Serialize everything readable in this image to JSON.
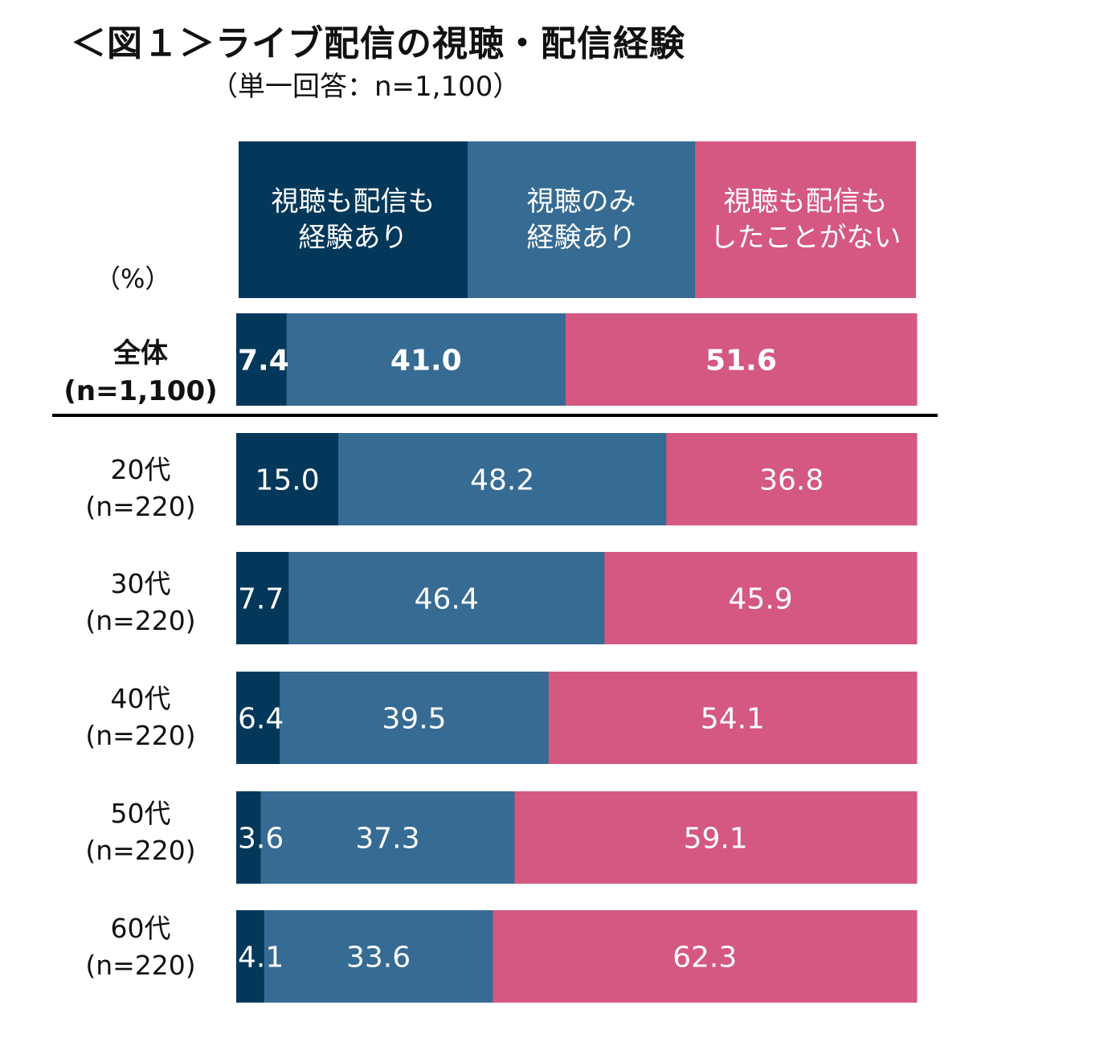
{
  "title": "＜図１＞ライブ配信の視聴・配信経験",
  "subtitle": "（単一回答：n=1,100）",
  "unit": "（%）",
  "colors": {
    "both": "#04385a",
    "view_only": "#366b94",
    "none": "#d45880"
  },
  "legend": [
    {
      "line1": "視聴も配信も",
      "line2": "経験あり"
    },
    {
      "line1": "視聴のみ",
      "line2": "経験あり"
    },
    {
      "line1": "視聴も配信も",
      "line2": "したことがない"
    }
  ],
  "rows": [
    {
      "label": "全体",
      "n": "(n=1,100)"
    },
    {
      "label": "20代",
      "n": "(n=220)"
    },
    {
      "label": "30代",
      "n": "(n=220)"
    },
    {
      "label": "40代",
      "n": "(n=220)"
    },
    {
      "label": "50代",
      "n": "(n=220)"
    },
    {
      "label": "60代",
      "n": "(n=220)"
    }
  ],
  "chart_data": {
    "type": "bar",
    "orientation": "horizontal",
    "stacked": true,
    "unit": "%",
    "title": "＜図１＞ライブ配信の視聴・配信経験",
    "categories": [
      "全体 (n=1,100)",
      "20代 (n=220)",
      "30代 (n=220)",
      "40代 (n=220)",
      "50代 (n=220)",
      "60代 (n=220)"
    ],
    "series": [
      {
        "name": "視聴も配信も経験あり",
        "values": [
          7.4,
          15.0,
          7.7,
          6.4,
          3.6,
          4.1
        ],
        "labels": [
          "7.4",
          "15.0",
          "7.7",
          "6.4",
          "3.6",
          "4.1"
        ]
      },
      {
        "name": "視聴のみ経験あり",
        "values": [
          41.0,
          48.2,
          46.4,
          39.5,
          37.3,
          33.6
        ],
        "labels": [
          "41.0",
          "48.2",
          "46.4",
          "39.5",
          "37.3",
          "33.6"
        ]
      },
      {
        "name": "視聴も配信もしたことがない",
        "values": [
          51.6,
          36.8,
          45.9,
          54.1,
          59.1,
          62.3
        ],
        "labels": [
          "51.6",
          "36.8",
          "45.9",
          "54.1",
          "59.1",
          "62.3"
        ]
      }
    ],
    "xlim": [
      0,
      100
    ]
  }
}
